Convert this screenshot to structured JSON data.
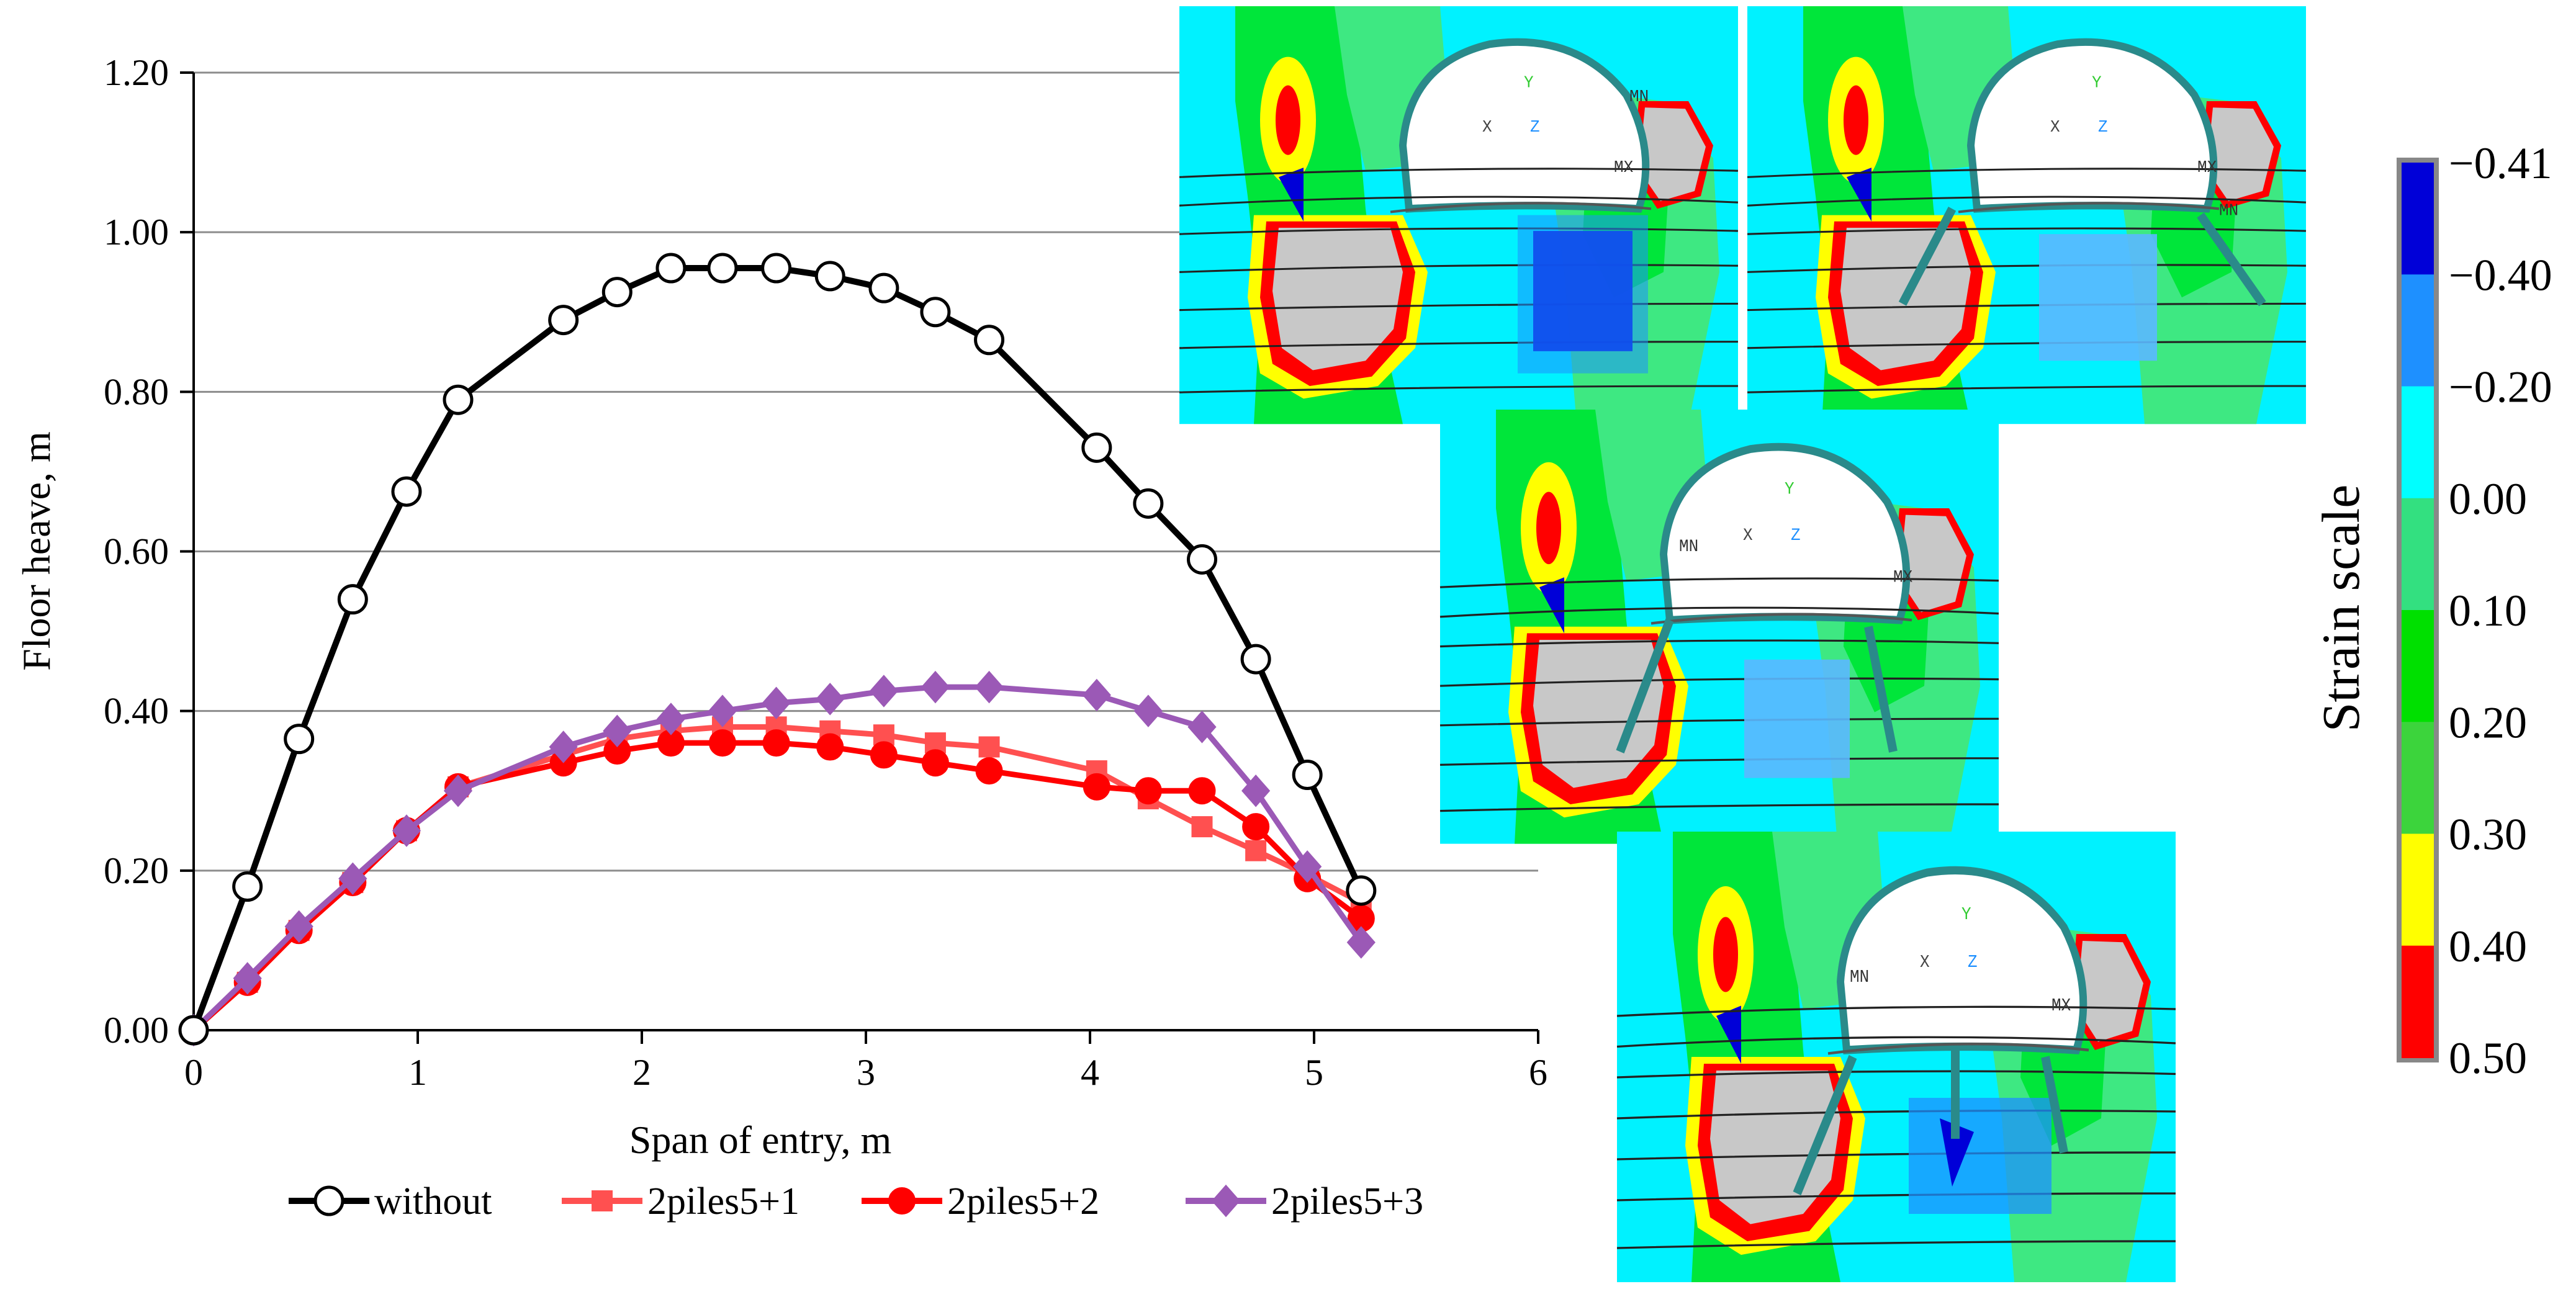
{
  "chart_data": {
    "type": "line",
    "xlabel": "Span of entry, m",
    "ylabel": "Floor heave, m",
    "xlim": [
      0,
      6
    ],
    "ylim": [
      0,
      1.2
    ],
    "x_ticks": [
      "0",
      "1",
      "2",
      "3",
      "4",
      "5",
      "6"
    ],
    "y_ticks": [
      "0.00",
      "0.20",
      "0.40",
      "0.60",
      "0.80",
      "1.00",
      "1.20"
    ],
    "grid": "horizontal",
    "legend_position": "bottom",
    "series": [
      {
        "name": "without",
        "color": "#000000",
        "marker": "circle-open",
        "x": [
          0,
          0.24,
          0.47,
          0.71,
          0.95,
          1.18,
          1.65,
          1.89,
          2.13,
          2.36,
          2.6,
          2.84,
          3.08,
          3.31,
          3.55,
          4.03,
          4.26,
          4.5,
          4.74,
          4.97,
          5.21
        ],
        "y": [
          0.0,
          0.18,
          0.365,
          0.54,
          0.675,
          0.79,
          0.89,
          0.925,
          0.955,
          0.955,
          0.955,
          0.945,
          0.93,
          0.9,
          0.865,
          0.73,
          0.66,
          0.59,
          0.465,
          0.32,
          0.175
        ]
      },
      {
        "name": "2piles5+1",
        "color": "#ff5050",
        "marker": "square",
        "x": [
          0,
          0.24,
          0.47,
          0.71,
          0.95,
          1.18,
          1.65,
          1.89,
          2.13,
          2.36,
          2.6,
          2.84,
          3.08,
          3.31,
          3.55,
          4.03,
          4.26,
          4.5,
          4.74,
          4.97,
          5.21
        ],
        "y": [
          0.0,
          0.06,
          0.125,
          0.185,
          0.25,
          0.305,
          0.345,
          0.365,
          0.375,
          0.38,
          0.38,
          0.375,
          0.37,
          0.36,
          0.355,
          0.325,
          0.29,
          0.255,
          0.225,
          0.195,
          0.16
        ]
      },
      {
        "name": "2piles5+2",
        "color": "#ff0000",
        "marker": "circle",
        "x": [
          0,
          0.24,
          0.47,
          0.71,
          0.95,
          1.18,
          1.65,
          1.89,
          2.13,
          2.36,
          2.6,
          2.84,
          3.08,
          3.31,
          3.55,
          4.03,
          4.26,
          4.5,
          4.74,
          4.97,
          5.21
        ],
        "y": [
          0.0,
          0.06,
          0.125,
          0.185,
          0.25,
          0.305,
          0.335,
          0.35,
          0.36,
          0.36,
          0.36,
          0.355,
          0.345,
          0.335,
          0.325,
          0.305,
          0.3,
          0.3,
          0.255,
          0.19,
          0.14
        ]
      },
      {
        "name": "2piles5+3",
        "color": "#9b59b6",
        "marker": "diamond",
        "x": [
          0,
          0.24,
          0.47,
          0.71,
          0.95,
          1.18,
          1.65,
          1.89,
          2.13,
          2.36,
          2.6,
          2.84,
          3.08,
          3.31,
          3.55,
          4.03,
          4.26,
          4.5,
          4.74,
          4.97,
          5.21
        ],
        "y": [
          0.0,
          0.065,
          0.13,
          0.19,
          0.25,
          0.3,
          0.355,
          0.375,
          0.39,
          0.4,
          0.41,
          0.415,
          0.425,
          0.43,
          0.43,
          0.42,
          0.4,
          0.38,
          0.3,
          0.205,
          0.11
        ]
      }
    ]
  },
  "strain_scale": {
    "title": "Strain scale",
    "labels": [
      "−0.41",
      "−0.40",
      "−0.20",
      "0.00",
      "0.10",
      "0.20",
      "0.30",
      "0.40",
      "0.50"
    ],
    "colors": [
      "#0000d8",
      "#1e90ff",
      "#00ffff",
      "#33e080",
      "#00e000",
      "#3cd43c",
      "#ffff00",
      "#ff0000"
    ]
  },
  "simulation_panels": [
    {
      "labels": {
        "x": "X",
        "y": "Y",
        "z": "Z",
        "mx": "MX",
        "mn": "MN"
      }
    },
    {
      "labels": {
        "x": "X",
        "y": "Y",
        "z": "Z",
        "mx": "MX",
        "mn": "MN"
      }
    },
    {
      "labels": {
        "x": "X",
        "y": "Y",
        "z": "Z",
        "mx": "MX",
        "mn": "MN"
      }
    },
    {
      "labels": {
        "x": "X",
        "y": "Y",
        "z": "Z",
        "mx": "MX",
        "mn": "MN"
      }
    }
  ],
  "colors": {
    "cyan": "#00f2ff",
    "green": "#00e63a",
    "light_green": "#3ee882",
    "yellow": "#ffff00",
    "red": "#ff0000",
    "gray": "#c8c8c8",
    "blue": "#0000d8",
    "mid_blue": "#1e90ff",
    "light_blue": "#5bb8ff"
  }
}
